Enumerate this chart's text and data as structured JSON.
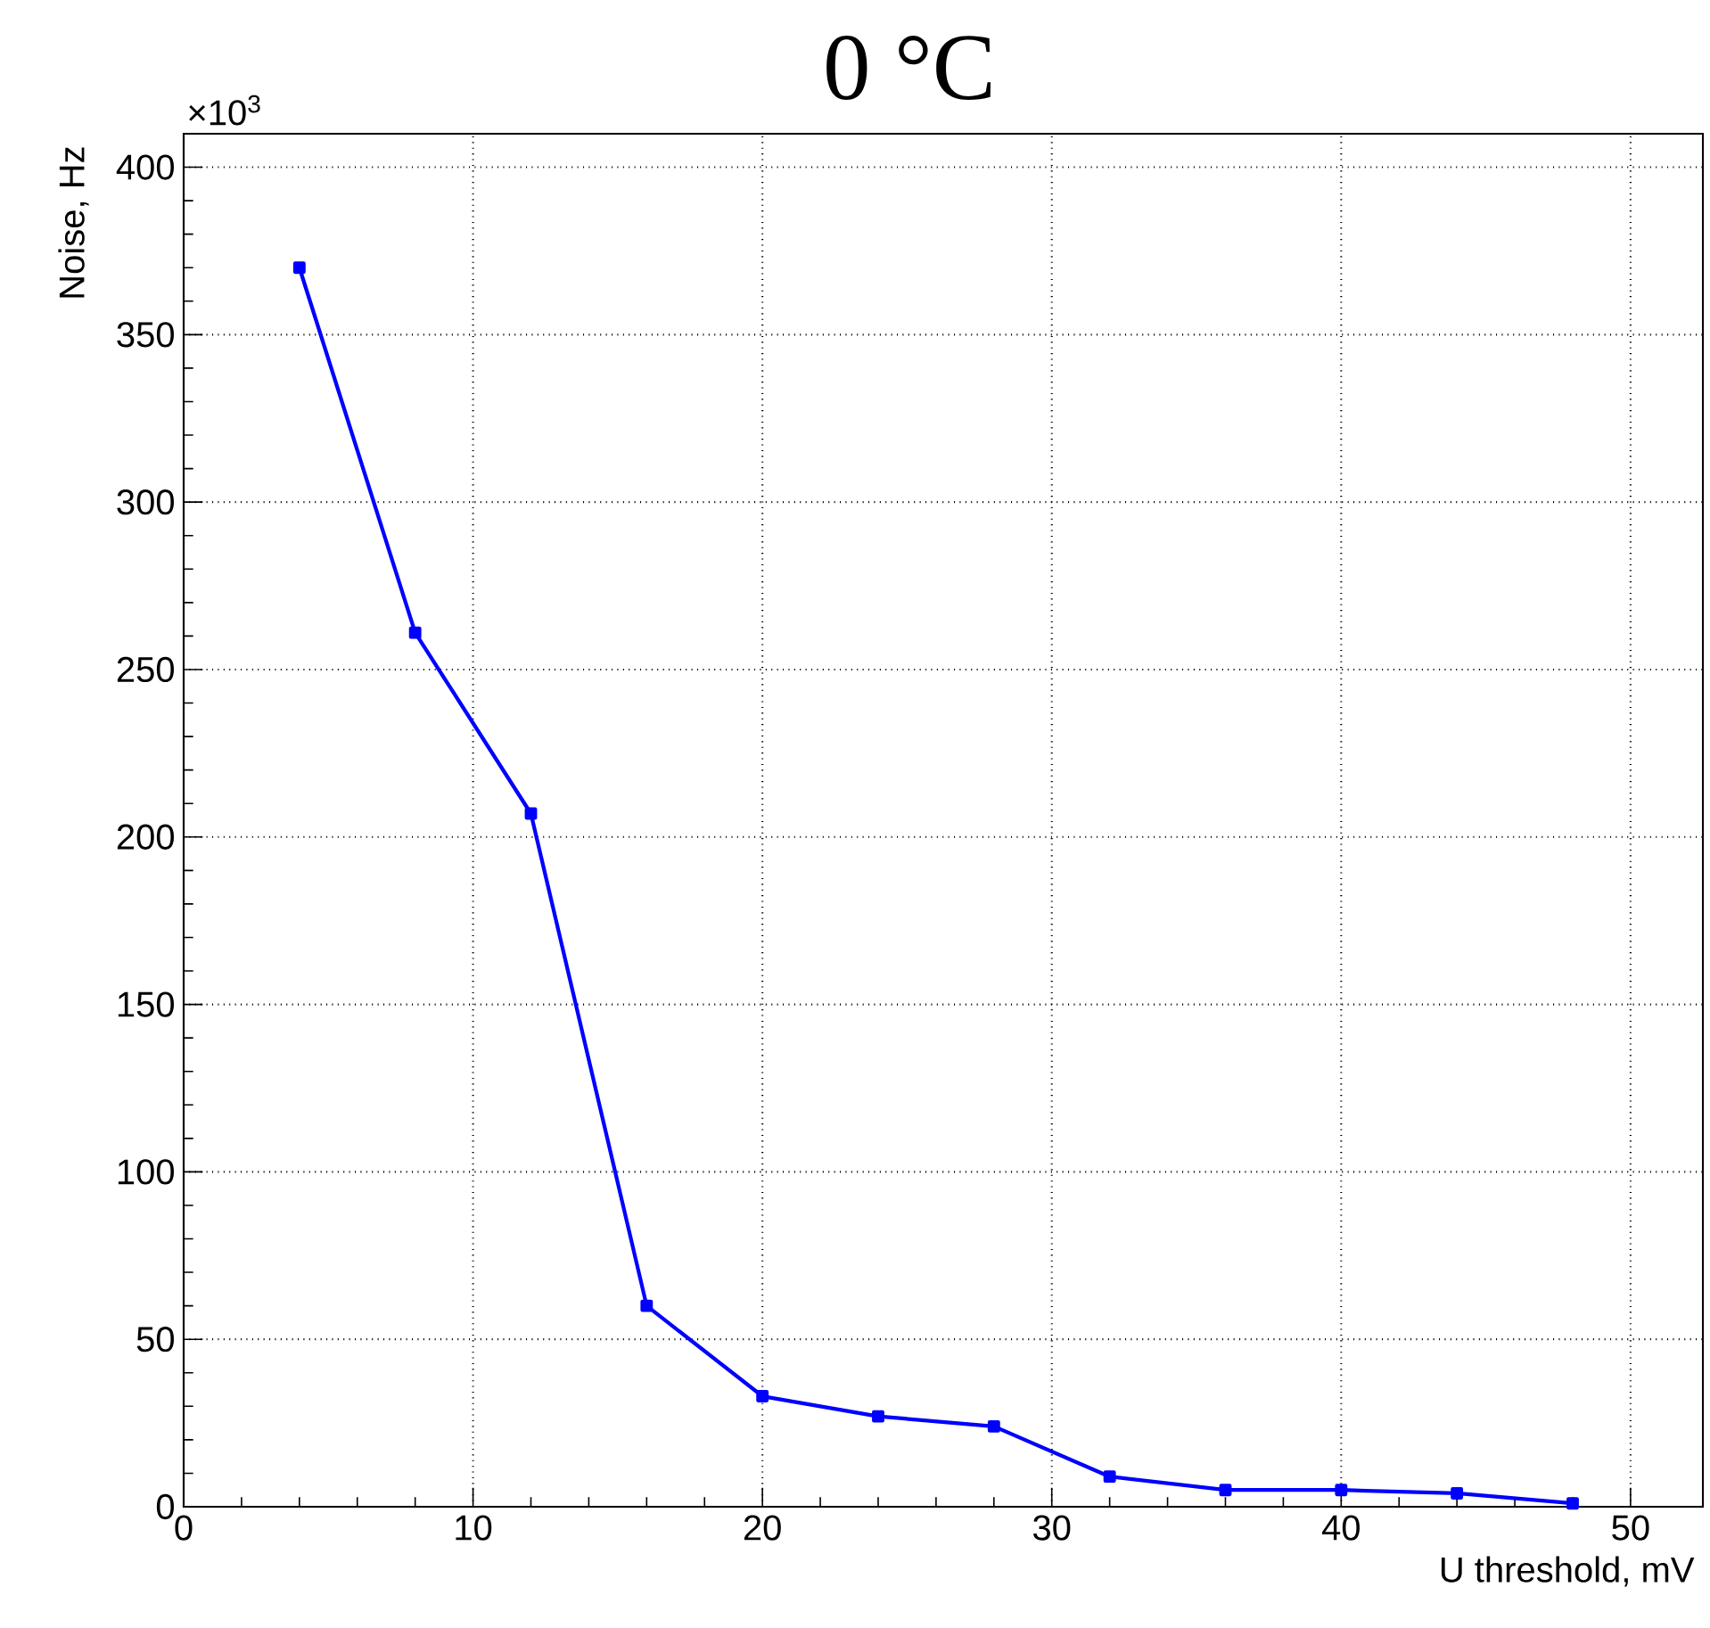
{
  "chart_data": {
    "type": "line",
    "title": "0 °C",
    "xlabel": "U threshold, mV",
    "ylabel": "Noise, Hz",
    "annotations": [
      "×10$^{3}$"
    ],
    "x": [
      4,
      8,
      12,
      16,
      20,
      24,
      28,
      32,
      36,
      40,
      44,
      48
    ],
    "series": [
      {
        "color": "#0000ff",
        "values": [
          370,
          261,
          207,
          60,
          33,
          27,
          24,
          9,
          5,
          5,
          4,
          1
        ]
      }
    ],
    "xlim": [
      0,
      52.5
    ],
    "ylim": [
      0,
      410
    ],
    "xticks": [
      0,
      10,
      20,
      30,
      40,
      50
    ],
    "yticks": [
      0,
      50,
      100,
      150,
      200,
      250,
      300,
      350,
      400
    ],
    "grid": true,
    "marker": "square",
    "line_style": "solid"
  }
}
